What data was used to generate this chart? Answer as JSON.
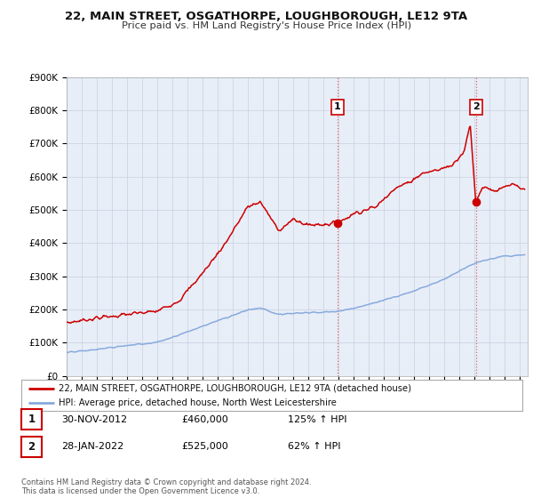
{
  "title": "22, MAIN STREET, OSGATHORPE, LOUGHBOROUGH, LE12 9TA",
  "subtitle": "Price paid vs. HM Land Registry's House Price Index (HPI)",
  "ylim": [
    0,
    900000
  ],
  "xlim_start": 1995.0,
  "xlim_end": 2025.5,
  "fig_bg": "#ffffff",
  "plot_bg": "#e8eef8",
  "red_line_color": "#cc0000",
  "blue_line_color": "#88aadd",
  "sale1_date": "30-NOV-2012",
  "sale1_price": 460000,
  "sale1_hpi": "125% ↑ HPI",
  "sale1_label": "1",
  "sale2_date": "28-JAN-2022",
  "sale2_price": 525000,
  "sale2_hpi": "62% ↑ HPI",
  "sale2_label": "2",
  "legend_red": "22, MAIN STREET, OSGATHORPE, LOUGHBOROUGH, LE12 9TA (detached house)",
  "legend_blue": "HPI: Average price, detached house, North West Leicestershire",
  "footnote": "Contains HM Land Registry data © Crown copyright and database right 2024.\nThis data is licensed under the Open Government Licence v3.0.",
  "sale1_x": 2012.92,
  "sale2_x": 2022.08
}
